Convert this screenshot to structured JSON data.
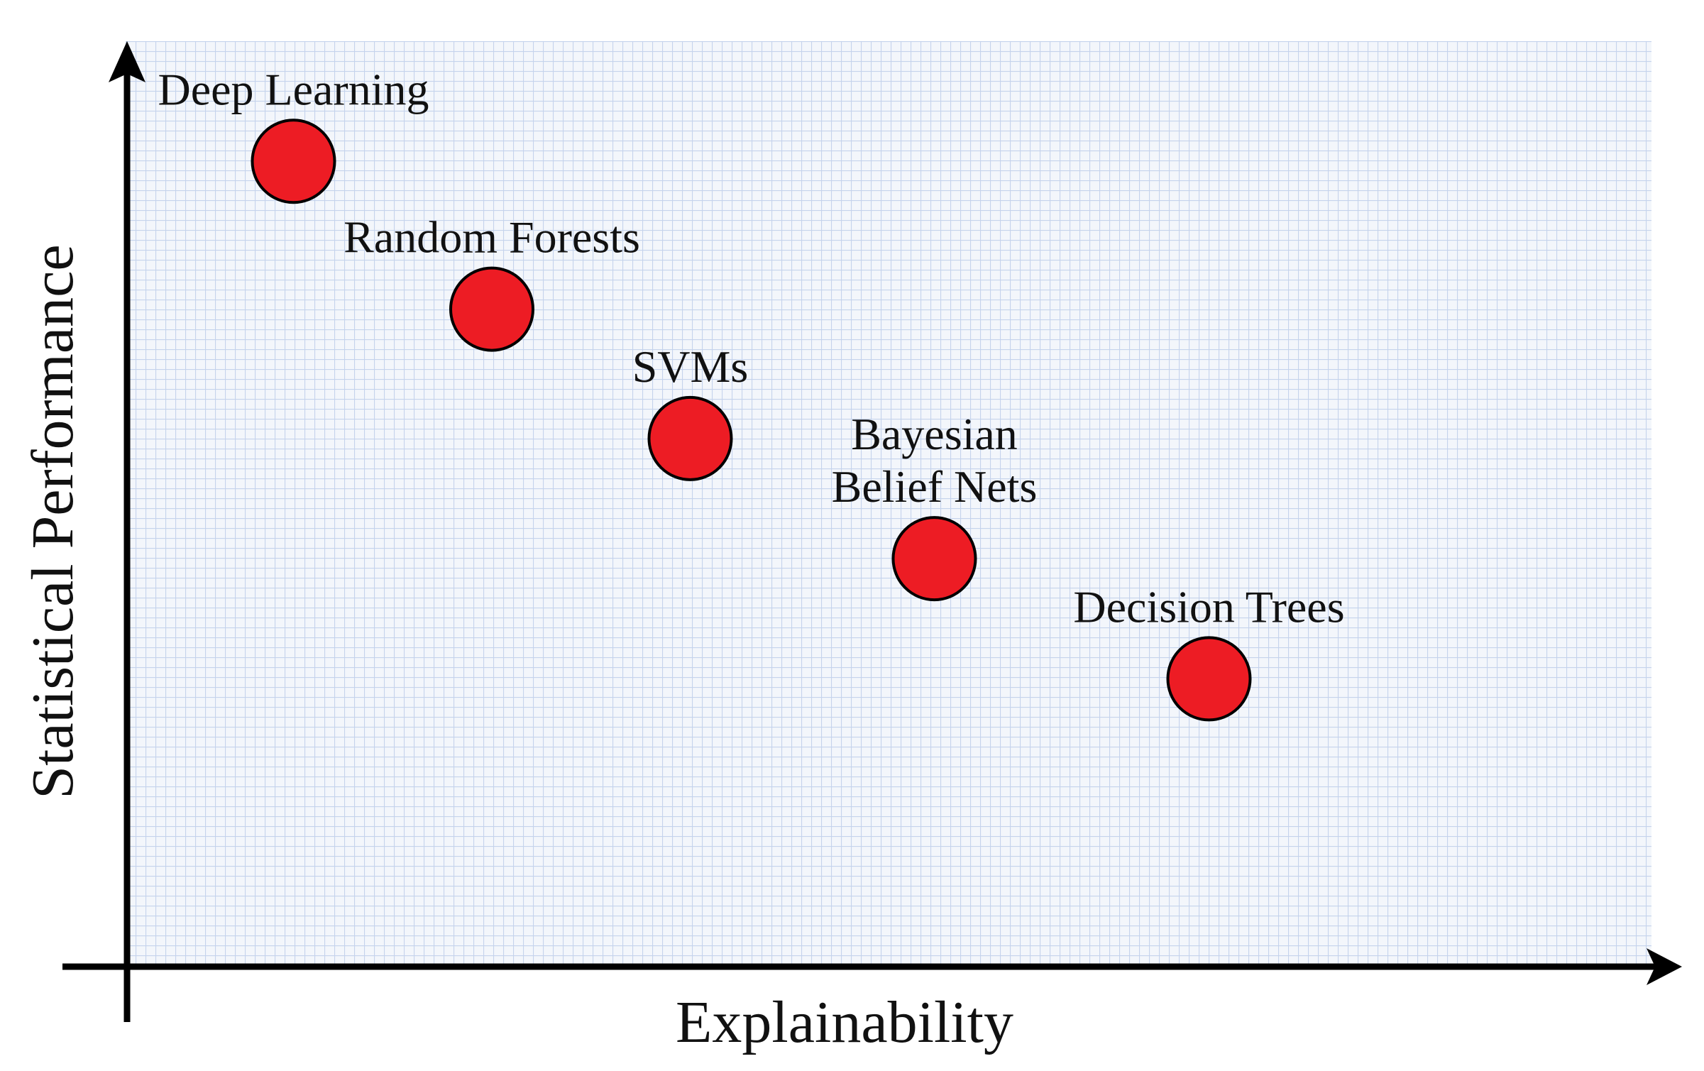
{
  "chart_data": {
    "type": "scatter",
    "title": "",
    "xlabel": "Explainability",
    "ylabel": "Statistical Performance",
    "xlim": [
      0,
      100
    ],
    "ylim": [
      0,
      100
    ],
    "grid": true,
    "legend": "none",
    "ticks_shown": false,
    "colors": {
      "point_fill": "#ed1c24",
      "point_stroke": "#000000",
      "grid": "#c5d3ec",
      "background": "#f3f6fb",
      "axis": "#000000"
    },
    "points": [
      {
        "label": [
          "Deep Learning"
        ],
        "x": 11,
        "y": 87
      },
      {
        "label": [
          "Random Forests"
        ],
        "x": 24,
        "y": 71
      },
      {
        "label": [
          "SVMs"
        ],
        "x": 37,
        "y": 57
      },
      {
        "label": [
          "Bayesian",
          "Belief Nets"
        ],
        "x": 53,
        "y": 44
      },
      {
        "label": [
          "Decision Trees"
        ],
        "x": 71,
        "y": 31
      }
    ]
  }
}
